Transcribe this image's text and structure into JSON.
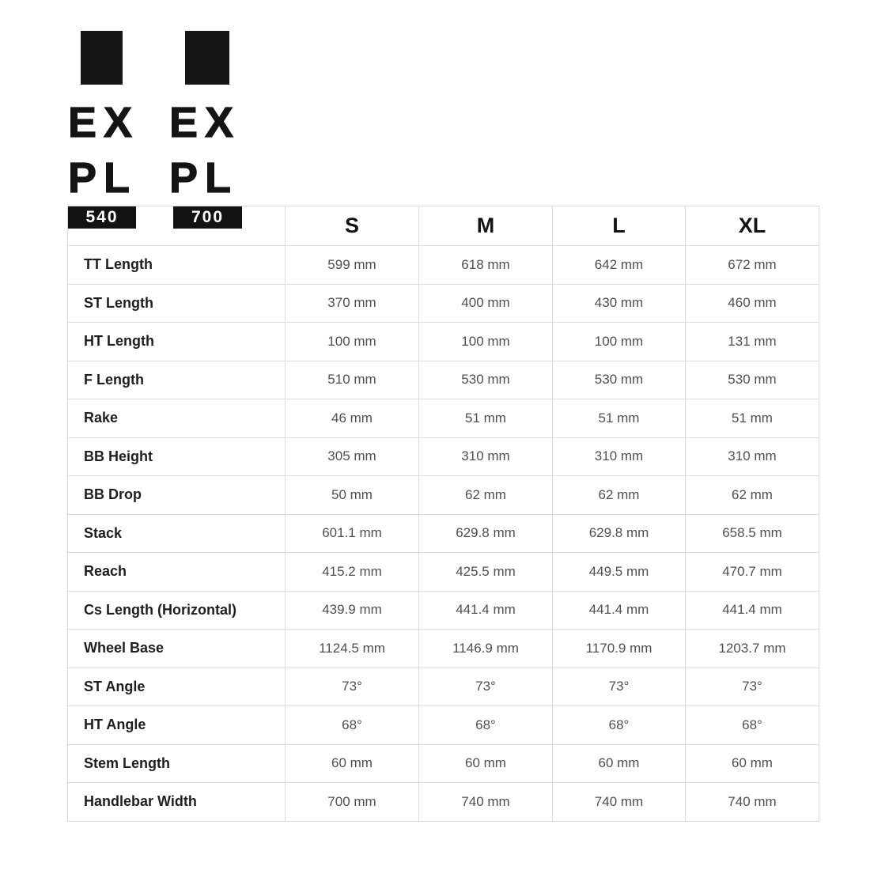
{
  "logos": [
    {
      "line1": "EX",
      "line2": "PL",
      "badge": "540"
    },
    {
      "line1": "EX",
      "line2": "PL",
      "badge": "700"
    }
  ],
  "colors": {
    "background": "#ffffff",
    "brand_black": "#141414",
    "badge_background": "#121212",
    "badge_text": "#ffffff",
    "table_border": "#dcdcdc",
    "row_label_text": "#1e1e1e",
    "cell_value_text": "#4f4f4f"
  },
  "table": {
    "columns": [
      "S",
      "M",
      "L",
      "XL"
    ],
    "rows": [
      {
        "label": "TT Length",
        "values": [
          "599 mm",
          "618 mm",
          "642 mm",
          "672 mm"
        ]
      },
      {
        "label": "ST Length",
        "values": [
          "370 mm",
          "400 mm",
          "430 mm",
          "460 mm"
        ]
      },
      {
        "label": "HT Length",
        "values": [
          "100 mm",
          "100 mm",
          "100 mm",
          "131 mm"
        ]
      },
      {
        "label": "F Length",
        "values": [
          "510 mm",
          "530 mm",
          "530 mm",
          "530 mm"
        ]
      },
      {
        "label": "Rake",
        "values": [
          "46 mm",
          "51 mm",
          "51 mm",
          "51 mm"
        ]
      },
      {
        "label": "BB Height",
        "values": [
          "305 mm",
          "310 mm",
          "310 mm",
          "310 mm"
        ]
      },
      {
        "label": "BB Drop",
        "values": [
          "50 mm",
          "62 mm",
          "62 mm",
          "62 mm"
        ]
      },
      {
        "label": "Stack",
        "values": [
          "601.1 mm",
          "629.8 mm",
          "629.8 mm",
          "658.5 mm"
        ]
      },
      {
        "label": "Reach",
        "values": [
          "415.2 mm",
          "425.5 mm",
          "449.5 mm",
          "470.7 mm"
        ]
      },
      {
        "label": "Cs Length (Horizontal)",
        "values": [
          "439.9 mm",
          "441.4 mm",
          "441.4 mm",
          "441.4 mm"
        ]
      },
      {
        "label": "Wheel Base",
        "values": [
          "1124.5 mm",
          "1146.9 mm",
          "1170.9 mm",
          "1203.7 mm"
        ]
      },
      {
        "label": "ST Angle",
        "values": [
          "73°",
          "73°",
          "73°",
          "73°"
        ]
      },
      {
        "label": "HT Angle",
        "values": [
          "68°",
          "68°",
          "68°",
          "68°"
        ]
      },
      {
        "label": "Stem Length",
        "values": [
          "60 mm",
          "60 mm",
          "60 mm",
          "60 mm"
        ]
      },
      {
        "label": "Handlebar Width",
        "values": [
          "700 mm",
          "740 mm",
          "740 mm",
          "740 mm"
        ]
      }
    ]
  }
}
